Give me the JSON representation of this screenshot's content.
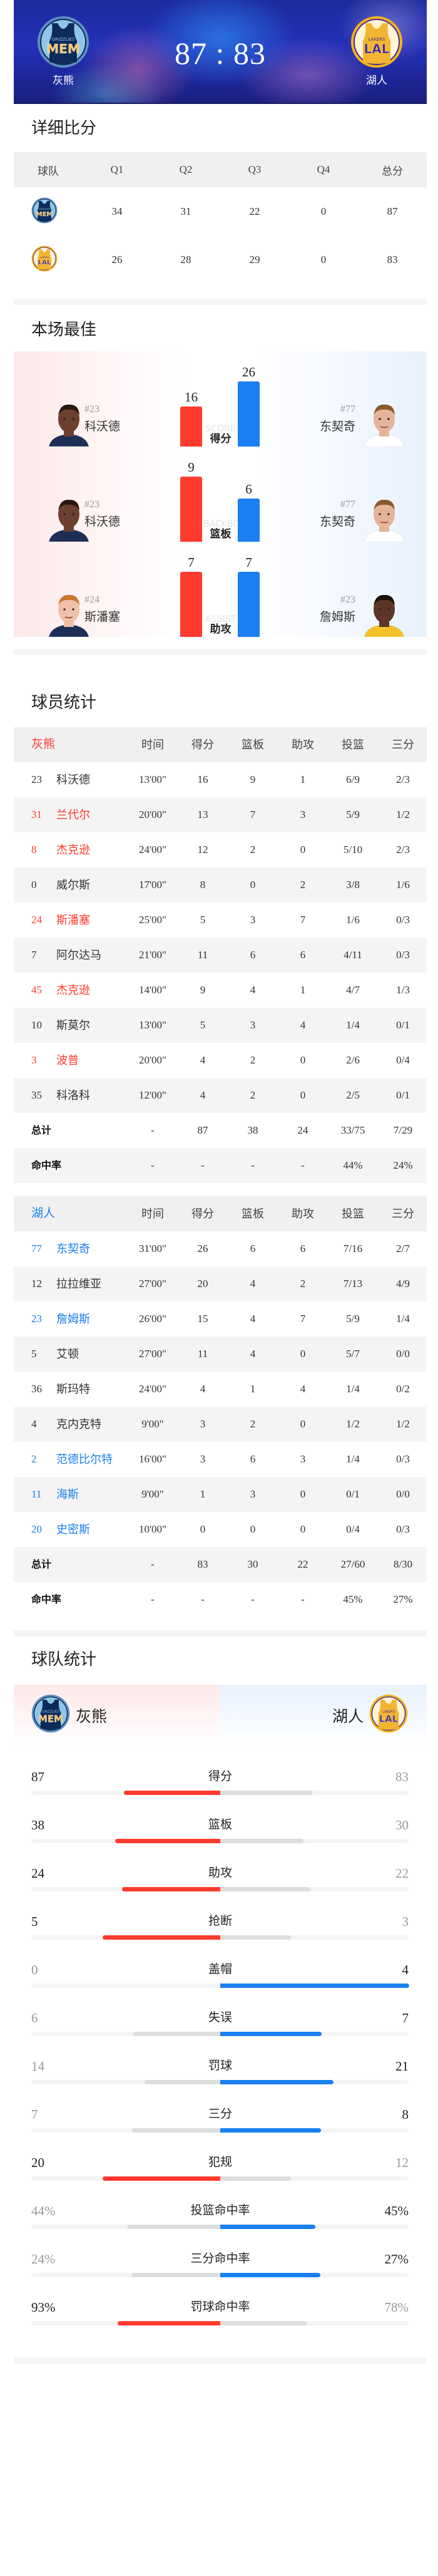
{
  "header": {
    "home": {
      "name": "灰熊",
      "logo_text": "MEM",
      "logo_subtext": "GRIZZLIES"
    },
    "away": {
      "name": "湖人",
      "logo_text": "LAL",
      "logo_subtext": "LAKERS"
    },
    "score": "87 : 83"
  },
  "colors": {
    "home": "#ff3b30",
    "away": "#1a7ff0",
    "loser_bar": "#dddddd",
    "track": "#f4f4f4"
  },
  "quarter_scores": {
    "title": "详细比分",
    "headers": [
      "球队",
      "Q1",
      "Q2",
      "Q3",
      "Q4",
      "总分"
    ],
    "rows": [
      {
        "team": "MEM",
        "scores": [
          "34",
          "31",
          "22",
          "0",
          "87"
        ]
      },
      {
        "team": "LAL",
        "scores": [
          "26",
          "28",
          "29",
          "0",
          "83"
        ]
      }
    ]
  },
  "best_players": {
    "title": "本场最佳",
    "items": [
      {
        "category": "得分",
        "watermark": "SCORE",
        "home": {
          "number": "#23",
          "name": "科沃德",
          "value": 16
        },
        "away": {
          "number": "#77",
          "name": "东契奇",
          "value": 26
        }
      },
      {
        "category": "篮板",
        "watermark": "BACKBOARD",
        "home": {
          "number": "#23",
          "name": "科沃德",
          "value": 9
        },
        "away": {
          "number": "#77",
          "name": "东契奇",
          "value": 6
        }
      },
      {
        "category": "助攻",
        "watermark": "ASSIST",
        "home": {
          "number": "#24",
          "name": "斯潘塞",
          "value": 7
        },
        "away": {
          "number": "#23",
          "name": "詹姆斯",
          "value": 7
        }
      }
    ]
  },
  "player_stats": {
    "title": "球员统计",
    "columns": [
      "时间",
      "得分",
      "篮板",
      "助攻",
      "投篮",
      "三分"
    ],
    "teams": [
      {
        "name": "灰熊",
        "side": "home",
        "players": [
          {
            "num": "23",
            "name": "科沃德",
            "stats": [
              "13'00\"",
              "16",
              "9",
              "1",
              "6/9",
              "2/3"
            ],
            "highlight": false
          },
          {
            "num": "31",
            "name": "兰代尔",
            "stats": [
              "20'00\"",
              "13",
              "7",
              "3",
              "5/9",
              "1/2"
            ],
            "highlight": true
          },
          {
            "num": "8",
            "name": "杰克逊",
            "stats": [
              "24'00\"",
              "12",
              "2",
              "0",
              "5/10",
              "2/3"
            ],
            "highlight": true
          },
          {
            "num": "0",
            "name": "威尔斯",
            "stats": [
              "17'00\"",
              "8",
              "0",
              "2",
              "3/8",
              "1/6"
            ],
            "highlight": false
          },
          {
            "num": "24",
            "name": "斯潘塞",
            "stats": [
              "25'00\"",
              "5",
              "3",
              "7",
              "1/6",
              "0/3"
            ],
            "highlight": true
          },
          {
            "num": "7",
            "name": "阿尔达马",
            "stats": [
              "21'00\"",
              "11",
              "6",
              "6",
              "4/11",
              "0/3"
            ],
            "highlight": false
          },
          {
            "num": "45",
            "name": "杰克逊",
            "stats": [
              "14'00\"",
              "9",
              "4",
              "1",
              "4/7",
              "1/3"
            ],
            "highlight": true
          },
          {
            "num": "10",
            "name": "斯莫尔",
            "stats": [
              "13'00\"",
              "5",
              "3",
              "4",
              "1/4",
              "0/1"
            ],
            "highlight": false
          },
          {
            "num": "3",
            "name": "波普",
            "stats": [
              "20'00\"",
              "4",
              "2",
              "0",
              "2/6",
              "0/4"
            ],
            "highlight": true
          },
          {
            "num": "35",
            "name": "科洛科",
            "stats": [
              "12'00\"",
              "4",
              "2",
              "0",
              "2/5",
              "0/1"
            ],
            "highlight": false
          }
        ],
        "total": {
          "label": "总计",
          "values": [
            "-",
            "87",
            "38",
            "24",
            "33/75",
            "7/29"
          ]
        },
        "pct": {
          "label": "命中率",
          "values": [
            "-",
            "-",
            "-",
            "-",
            "44%",
            "24%"
          ]
        }
      },
      {
        "name": "湖人",
        "side": "away",
        "players": [
          {
            "num": "77",
            "name": "东契奇",
            "stats": [
              "31'00\"",
              "26",
              "6",
              "6",
              "7/16",
              "2/7"
            ],
            "highlight": true
          },
          {
            "num": "12",
            "name": "拉拉维亚",
            "stats": [
              "27'00\"",
              "20",
              "4",
              "2",
              "7/13",
              "4/9"
            ],
            "highlight": false
          },
          {
            "num": "23",
            "name": "詹姆斯",
            "stats": [
              "26'00\"",
              "15",
              "4",
              "7",
              "5/9",
              "1/4"
            ],
            "highlight": true
          },
          {
            "num": "5",
            "name": "艾顿",
            "stats": [
              "27'00\"",
              "11",
              "4",
              "0",
              "5/7",
              "0/0"
            ],
            "highlight": false
          },
          {
            "num": "36",
            "name": "斯玛特",
            "stats": [
              "24'00\"",
              "4",
              "1",
              "4",
              "1/4",
              "0/2"
            ],
            "highlight": false
          },
          {
            "num": "4",
            "name": "克内克特",
            "stats": [
              "9'00\"",
              "3",
              "2",
              "0",
              "1/2",
              "1/2"
            ],
            "highlight": false
          },
          {
            "num": "2",
            "name": "范德比尔特",
            "stats": [
              "16'00\"",
              "3",
              "6",
              "3",
              "1/4",
              "0/3"
            ],
            "highlight": true
          },
          {
            "num": "11",
            "name": "海斯",
            "stats": [
              "9'00\"",
              "1",
              "3",
              "0",
              "0/1",
              "0/0"
            ],
            "highlight": true
          },
          {
            "num": "20",
            "name": "史密斯",
            "stats": [
              "10'00\"",
              "0",
              "0",
              "0",
              "0/4",
              "0/3"
            ],
            "highlight": true
          }
        ],
        "total": {
          "label": "总计",
          "values": [
            "-",
            "83",
            "30",
            "22",
            "27/60",
            "8/30"
          ]
        },
        "pct": {
          "label": "命中率",
          "values": [
            "-",
            "-",
            "-",
            "-",
            "45%",
            "27%"
          ]
        }
      }
    ]
  },
  "team_stats": {
    "title": "球队统计",
    "home_name": "灰熊",
    "away_name": "湖人",
    "rows": [
      {
        "label": "得分",
        "home": "87",
        "away": "83"
      },
      {
        "label": "篮板",
        "home": "38",
        "away": "30"
      },
      {
        "label": "助攻",
        "home": "24",
        "away": "22"
      },
      {
        "label": "抢断",
        "home": "5",
        "away": "3"
      },
      {
        "label": "盖帽",
        "home": "0",
        "away": "4"
      },
      {
        "label": "失误",
        "home": "6",
        "away": "7"
      },
      {
        "label": "罚球",
        "home": "14",
        "away": "21"
      },
      {
        "label": "三分",
        "home": "7",
        "away": "8"
      },
      {
        "label": "犯规",
        "home": "20",
        "away": "12"
      },
      {
        "label": "投篮命中率",
        "home": "44%",
        "away": "45%"
      },
      {
        "label": "三分命中率",
        "home": "24%",
        "away": "27%"
      },
      {
        "label": "罚球命中率",
        "home": "93%",
        "away": "78%"
      }
    ]
  }
}
